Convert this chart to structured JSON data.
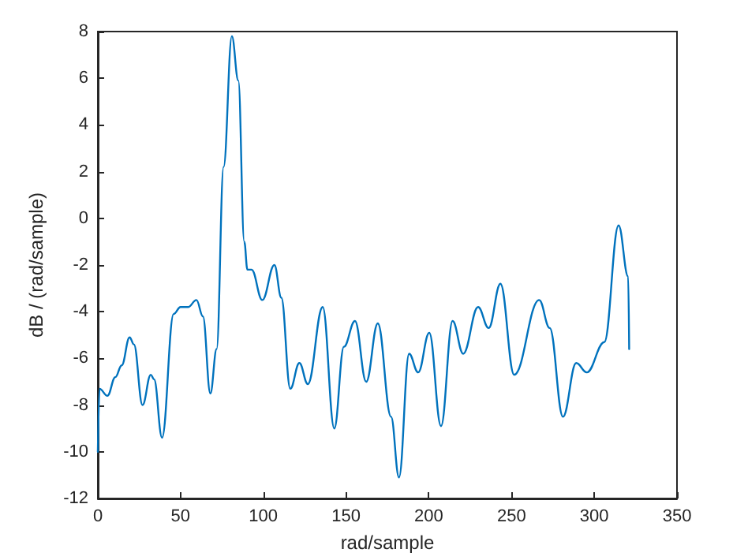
{
  "chart_data": {
    "type": "line",
    "xlabel": "rad/sample",
    "ylabel": "dB / (rad/sample)",
    "x": [
      0,
      1,
      5.8,
      10.6,
      14.4,
      19.2,
      21.8,
      27,
      32,
      34,
      38.8,
      45.8,
      50,
      54.5,
      59.6,
      63.5,
      68,
      71.8,
      76,
      81,
      84.9,
      88.5,
      90.4,
      92.9,
      99.4,
      106.7,
      110.9,
      116.3,
      121.8,
      126.9,
      135.9,
      142.9,
      148.7,
      155.4,
      162.2,
      169.2,
      177.2,
      182,
      188.1,
      193.6,
      200.3,
      207.4,
      214.4,
      220.8,
      229.8,
      236.2,
      243.3,
      251.6,
      266.7,
      273.1,
      281.1,
      289.1,
      295.5,
      306.1,
      314.7,
      320.5,
      321.1
    ],
    "series": [
      {
        "color": "#0072bd",
        "values": [
          -10.0,
          -7.3,
          -7.6,
          -6.8,
          -6.3,
          -5.1,
          -5.4,
          -8.0,
          -6.7,
          -6.9,
          -9.4,
          -4.1,
          -3.8,
          -3.8,
          -3.5,
          -4.2,
          -7.5,
          -5.6,
          2.2,
          7.8,
          5.9,
          -1.0,
          -2.2,
          -2.2,
          -3.5,
          -2.0,
          -3.4,
          -7.3,
          -6.2,
          -7.1,
          -3.8,
          -9.0,
          -5.5,
          -4.4,
          -7.0,
          -4.5,
          -8.5,
          -11.1,
          -5.8,
          -6.6,
          -4.9,
          -8.9,
          -4.4,
          -5.8,
          -3.8,
          -4.7,
          -2.8,
          -6.7,
          -3.5,
          -4.7,
          -8.5,
          -6.2,
          -6.6,
          -5.3,
          -0.3,
          -2.5,
          -5.6
        ]
      }
    ],
    "xlim": [
      0,
      350
    ],
    "xticks": [
      0,
      50,
      100,
      150,
      200,
      250,
      300,
      350
    ],
    "ylim": [
      -12,
      8
    ],
    "yticks": [
      -12,
      -10,
      -8,
      -6,
      -4,
      -2,
      0,
      2,
      4,
      6,
      8
    ],
    "grid": false,
    "marker": "none",
    "line_style": "solid"
  }
}
